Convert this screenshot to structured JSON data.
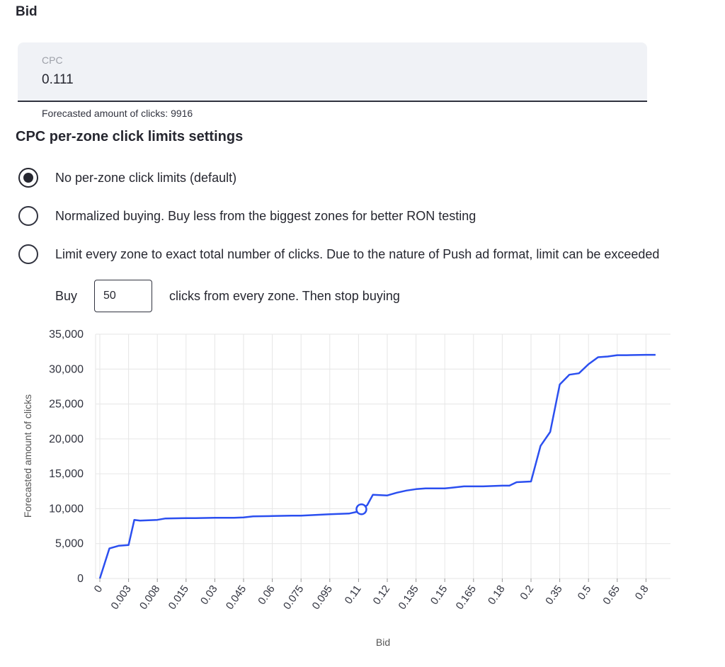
{
  "bid_section": {
    "title": "Bid"
  },
  "cpc": {
    "label": "CPC",
    "value": "0.111"
  },
  "forecast": {
    "text": "Forecasted amount of clicks: 9916"
  },
  "limits": {
    "title": "CPC per-zone click limits settings",
    "options": [
      {
        "label": "No per-zone click limits (default)",
        "selected": true
      },
      {
        "label": "Normalized buying. Buy less from the biggest zones for better RON testing",
        "selected": false
      },
      {
        "label": "Limit every zone to exact total number of clicks. Due to the nature of Push ad format, limit can be exceeded",
        "selected": false
      }
    ],
    "buy": {
      "prefix": "Buy",
      "value": "50",
      "suffix": "clicks from every zone. Then stop buying"
    }
  },
  "colors": {
    "line": "#2b4ff0",
    "grid": "#e6e6e6",
    "text": "#262730"
  },
  "chart_data": {
    "type": "line",
    "xlabel": "Bid",
    "ylabel": "Forecasted amount of clicks",
    "ylim": [
      0,
      35000
    ],
    "yticks": [
      "0",
      "5,000",
      "10,000",
      "15,000",
      "20,000",
      "25,000",
      "30,000",
      "35,000"
    ],
    "xticks": [
      "0",
      "0.003",
      "0.008",
      "0.015",
      "0.03",
      "0.045",
      "0.06",
      "0.075",
      "0.095",
      "0.11",
      "0.12",
      "0.135",
      "0.15",
      "0.165",
      "0.18",
      "0.2",
      "0.35",
      "0.5",
      "0.65",
      "0.8"
    ],
    "grid": true,
    "series": [
      {
        "x": [
          0,
          0.001,
          0.002,
          0.003,
          0.004,
          0.005,
          0.008,
          0.01,
          0.015,
          0.02,
          0.03,
          0.04,
          0.045,
          0.05,
          0.06,
          0.07,
          0.075,
          0.08,
          0.09,
          0.095,
          0.1,
          0.105,
          0.11,
          0.111,
          0.113,
          0.115,
          0.12,
          0.125,
          0.13,
          0.135,
          0.14,
          0.15,
          0.16,
          0.165,
          0.17,
          0.18,
          0.185,
          0.19,
          0.2,
          0.25,
          0.3,
          0.35,
          0.4,
          0.45,
          0.5,
          0.55,
          0.6,
          0.65,
          0.7,
          0.8,
          0.85
        ],
        "y": [
          0,
          4300,
          4700,
          4800,
          8400,
          8300,
          8400,
          8600,
          8650,
          8650,
          8700,
          8700,
          8750,
          8900,
          8950,
          9000,
          9000,
          9050,
          9150,
          9200,
          9250,
          9300,
          9600,
          9916,
          10500,
          12000,
          11900,
          12300,
          12600,
          12800,
          12900,
          12900,
          13200,
          13200,
          13200,
          13300,
          13300,
          13800,
          13900,
          19000,
          21000,
          27800,
          29200,
          29400,
          30700,
          31700,
          31800,
          32000,
          32000,
          32050,
          32050
        ]
      }
    ],
    "highlight": {
      "x": 0.111,
      "y": 9916
    }
  }
}
